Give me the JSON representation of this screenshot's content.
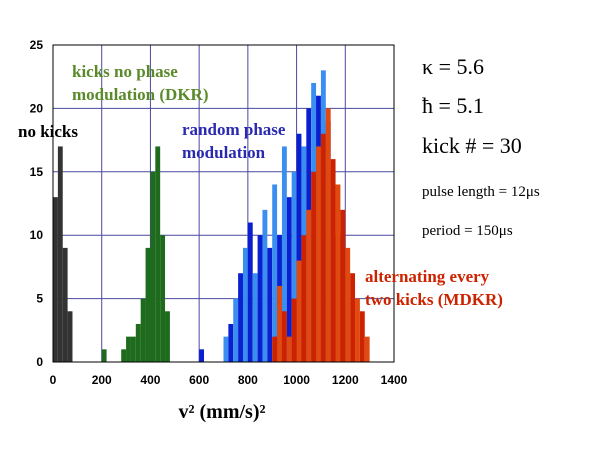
{
  "chart_data": {
    "type": "bar",
    "title": "",
    "xlabel": "v² (mm/s)²",
    "ylabel": "",
    "xlim": [
      0,
      1400
    ],
    "ylim": [
      0,
      25
    ],
    "bin_width": 20,
    "grid": true,
    "x_ticks": [
      "0",
      "200",
      "400",
      "600",
      "800",
      "1000",
      "1200",
      "1400"
    ],
    "y_ticks": [
      "0",
      "5",
      "10",
      "15",
      "20",
      "25"
    ],
    "series": [
      {
        "name": "no kicks",
        "color": "#333333",
        "x": [
          0,
          20,
          40,
          60
        ],
        "values": [
          13,
          17,
          9,
          4
        ]
      },
      {
        "name": "kicks no phase modulation (DKR)",
        "color": "#1e6b1e",
        "x": [
          200,
          280,
          300,
          320,
          340,
          360,
          380,
          400,
          420,
          440,
          460
        ],
        "values": [
          1,
          1,
          2,
          2,
          3,
          5,
          9,
          15,
          17,
          10,
          4
        ]
      },
      {
        "name": "random phase modulation",
        "color": "#0a1fd0",
        "x": [
          600,
          700,
          720,
          740,
          760,
          780,
          800,
          820,
          840,
          860,
          880,
          900,
          920,
          940,
          960,
          980,
          1000,
          1020,
          1040,
          1060,
          1080,
          1100,
          1120,
          1140,
          1160
        ],
        "values": [
          1,
          2,
          3,
          5,
          7,
          9,
          11,
          7,
          10,
          12,
          9,
          14,
          10,
          17,
          13,
          15,
          18,
          17,
          20,
          22,
          21,
          23,
          19,
          15,
          10
        ]
      },
      {
        "name": "alternating every two kicks (MDKR)",
        "color": "#cc2200",
        "x": [
          900,
          920,
          940,
          960,
          980,
          1000,
          1020,
          1040,
          1060,
          1080,
          1100,
          1120,
          1140,
          1160,
          1180,
          1200,
          1220,
          1240,
          1260,
          1280
        ],
        "values": [
          2,
          6,
          4,
          2,
          5,
          8,
          10,
          12,
          15,
          17,
          18,
          20,
          16,
          14,
          12,
          9,
          7,
          5,
          4,
          2
        ]
      }
    ],
    "annotations": [
      "no kicks",
      "kicks no phase modulation (DKR)",
      "random phase modulation",
      "alternating every two kicks (MDKR)"
    ]
  },
  "labels": {
    "no_kicks": "no kicks",
    "dkr_line1": "kicks no phase",
    "dkr_line2": "modulation (DKR)",
    "random_line1": "random phase",
    "random_line2": "modulation",
    "mdkr_line1": "alternating every",
    "mdkr_line2": "two kicks (MDKR)"
  },
  "params": {
    "kappa": "κ = 5.6",
    "hbar": "ħ = 5.1",
    "kick_number": "kick # = 30",
    "pulse_length": "pulse length = 12μs",
    "period": "period = 150μs"
  },
  "colors": {
    "grid": "#4a4aa0",
    "no_kicks_label": "#000000",
    "dkr_label": "#5a8a2a",
    "random_label": "#2a2ab0",
    "mdkr_label": "#cc2200"
  }
}
